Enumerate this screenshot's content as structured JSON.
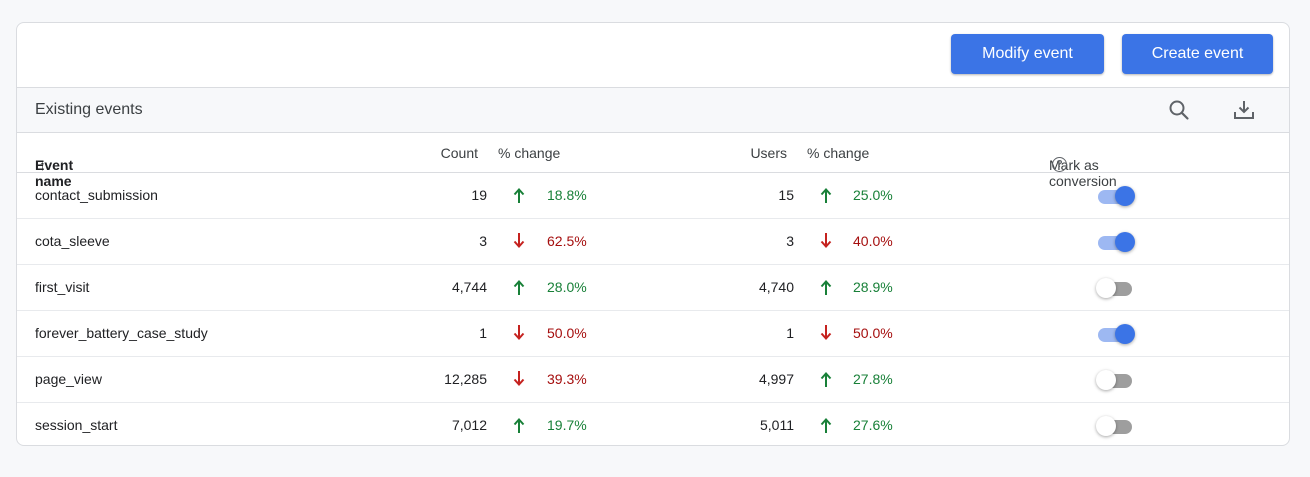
{
  "toolbar": {
    "modify_label": "Modify event",
    "create_label": "Create event",
    "accent_color": "#3b74e6"
  },
  "section": {
    "title": "Existing events",
    "search_icon": "search-icon",
    "download_icon": "download-icon"
  },
  "columns": {
    "name": "Event name",
    "sort_arrow": "↑",
    "count": "Count",
    "count_change": "% change",
    "users": "Users",
    "users_change": "% change",
    "conversion": "Mark as conversion",
    "help": "?"
  },
  "rows": [
    {
      "name": "contact_submission",
      "count": "19",
      "count_dir": "up",
      "count_pct": "18.8%",
      "users": "15",
      "users_dir": "up",
      "users_pct": "25.0%",
      "conversion": true
    },
    {
      "name": "cota_sleeve",
      "count": "3",
      "count_dir": "down",
      "count_pct": "62.5%",
      "users": "3",
      "users_dir": "down",
      "users_pct": "40.0%",
      "conversion": true
    },
    {
      "name": "first_visit",
      "count": "4,744",
      "count_dir": "up",
      "count_pct": "28.0%",
      "users": "4,740",
      "users_dir": "up",
      "users_pct": "28.9%",
      "conversion": false
    },
    {
      "name": "forever_battery_case_study",
      "count": "1",
      "count_dir": "down",
      "count_pct": "50.0%",
      "users": "1",
      "users_dir": "down",
      "users_pct": "50.0%",
      "conversion": true
    },
    {
      "name": "page_view",
      "count": "12,285",
      "count_dir": "down",
      "count_pct": "39.3%",
      "users": "4,997",
      "users_dir": "up",
      "users_pct": "27.8%",
      "conversion": false
    },
    {
      "name": "session_start",
      "count": "7,012",
      "count_dir": "up",
      "count_pct": "19.7%",
      "users": "5,011",
      "users_dir": "up",
      "users_pct": "27.6%",
      "conversion": false
    }
  ]
}
